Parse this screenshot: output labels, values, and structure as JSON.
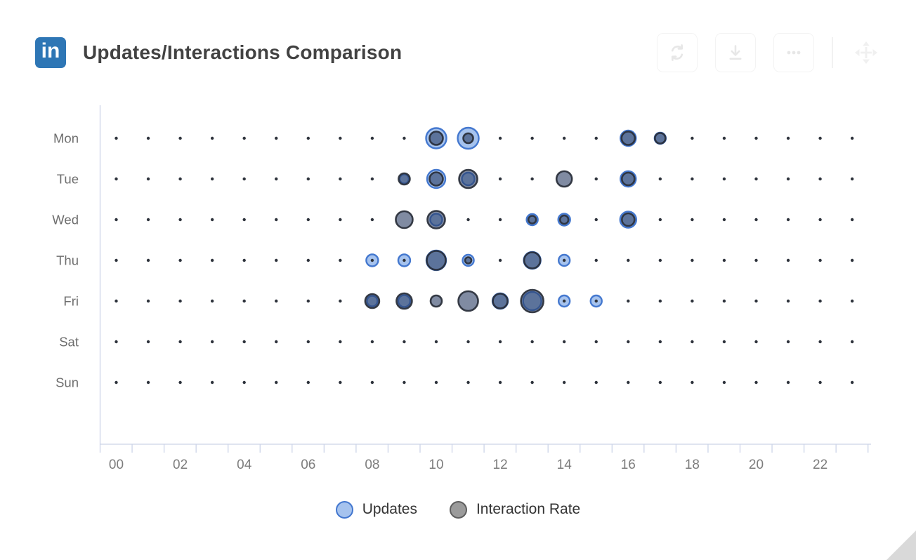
{
  "header": {
    "logo_text": "in",
    "title": "Updates/Interactions Comparison",
    "toolbar_icons": [
      "refresh-icon",
      "download-icon",
      "ellipsis-icon",
      "move-icon"
    ]
  },
  "chart_data": {
    "type": "scatter",
    "title": "Updates/Interactions Comparison",
    "x_range": [
      0,
      23
    ],
    "x_ticks": [
      {
        "hour": 0,
        "label": "00"
      },
      {
        "hour": 2,
        "label": "02"
      },
      {
        "hour": 4,
        "label": "04"
      },
      {
        "hour": 6,
        "label": "06"
      },
      {
        "hour": 8,
        "label": "08"
      },
      {
        "hour": 10,
        "label": "10"
      },
      {
        "hour": 12,
        "label": "12"
      },
      {
        "hour": 14,
        "label": "14"
      },
      {
        "hour": 16,
        "label": "16"
      },
      {
        "hour": 18,
        "label": "18"
      },
      {
        "hour": 20,
        "label": "20"
      },
      {
        "hour": 22,
        "label": "22"
      }
    ],
    "y_categories": [
      "Mon",
      "Tue",
      "Wed",
      "Thu",
      "Fri",
      "Sat",
      "Sun"
    ],
    "point_format": [
      "day",
      "hour",
      "diameter_px"
    ],
    "zero_marker": "small dot shown where value is zero",
    "zero_dot_color": "#2d323b",
    "axis_color": "#ccd4e8",
    "x_label_color": "#7d7d7d",
    "y_label_color": "#6e6e6e",
    "legend_position": "bottom",
    "series": [
      {
        "name": "Updates",
        "fill": "#a6c3ee",
        "stroke": "#4478cf",
        "points": [
          [
            "Mon",
            10,
            29
          ],
          [
            "Mon",
            11,
            30
          ],
          [
            "Mon",
            16,
            22
          ],
          [
            "Mon",
            17,
            16
          ],
          [
            "Tue",
            9,
            13
          ],
          [
            "Tue",
            10,
            26
          ],
          [
            "Tue",
            11,
            18
          ],
          [
            "Tue",
            16,
            22
          ],
          [
            "Wed",
            10,
            17
          ],
          [
            "Wed",
            13,
            16
          ],
          [
            "Wed",
            14,
            17
          ],
          [
            "Wed",
            16,
            23
          ],
          [
            "Thu",
            8,
            17
          ],
          [
            "Thu",
            9,
            17
          ],
          [
            "Thu",
            10,
            28
          ],
          [
            "Thu",
            11,
            16
          ],
          [
            "Thu",
            13,
            24
          ],
          [
            "Thu",
            14,
            16
          ],
          [
            "Fri",
            8,
            15
          ],
          [
            "Fri",
            9,
            17
          ],
          [
            "Fri",
            12,
            22
          ],
          [
            "Fri",
            13,
            26
          ],
          [
            "Fri",
            14,
            16
          ],
          [
            "Fri",
            15,
            16
          ]
        ]
      },
      {
        "name": "Interaction Rate",
        "fill": "rgba(44,62,100,0.6)",
        "stroke": "rgba(40,46,56,0.92)",
        "points": [
          [
            "Mon",
            10,
            19
          ],
          [
            "Mon",
            11,
            14
          ],
          [
            "Mon",
            16,
            19
          ],
          [
            "Mon",
            17,
            15
          ],
          [
            "Tue",
            9,
            16
          ],
          [
            "Tue",
            10,
            19
          ],
          [
            "Tue",
            11,
            26
          ],
          [
            "Tue",
            14,
            22
          ],
          [
            "Tue",
            16,
            18
          ],
          [
            "Wed",
            9,
            24
          ],
          [
            "Wed",
            10,
            25
          ],
          [
            "Wed",
            13,
            11
          ],
          [
            "Wed",
            14,
            12
          ],
          [
            "Wed",
            16,
            18
          ],
          [
            "Thu",
            10,
            27
          ],
          [
            "Thu",
            11,
            9
          ],
          [
            "Thu",
            13,
            23
          ],
          [
            "Fri",
            8,
            20
          ],
          [
            "Fri",
            9,
            22
          ],
          [
            "Fri",
            10,
            16
          ],
          [
            "Fri",
            11,
            28
          ],
          [
            "Fri",
            12,
            21
          ],
          [
            "Fri",
            13,
            32
          ]
        ]
      }
    ]
  },
  "legend": {
    "items": [
      {
        "label": "Updates",
        "fill": "#a6c3ee",
        "stroke": "#4377cf"
      },
      {
        "label": "Interaction Rate",
        "fill": "#9b9b9b",
        "stroke": "#5f5f5f"
      }
    ]
  }
}
